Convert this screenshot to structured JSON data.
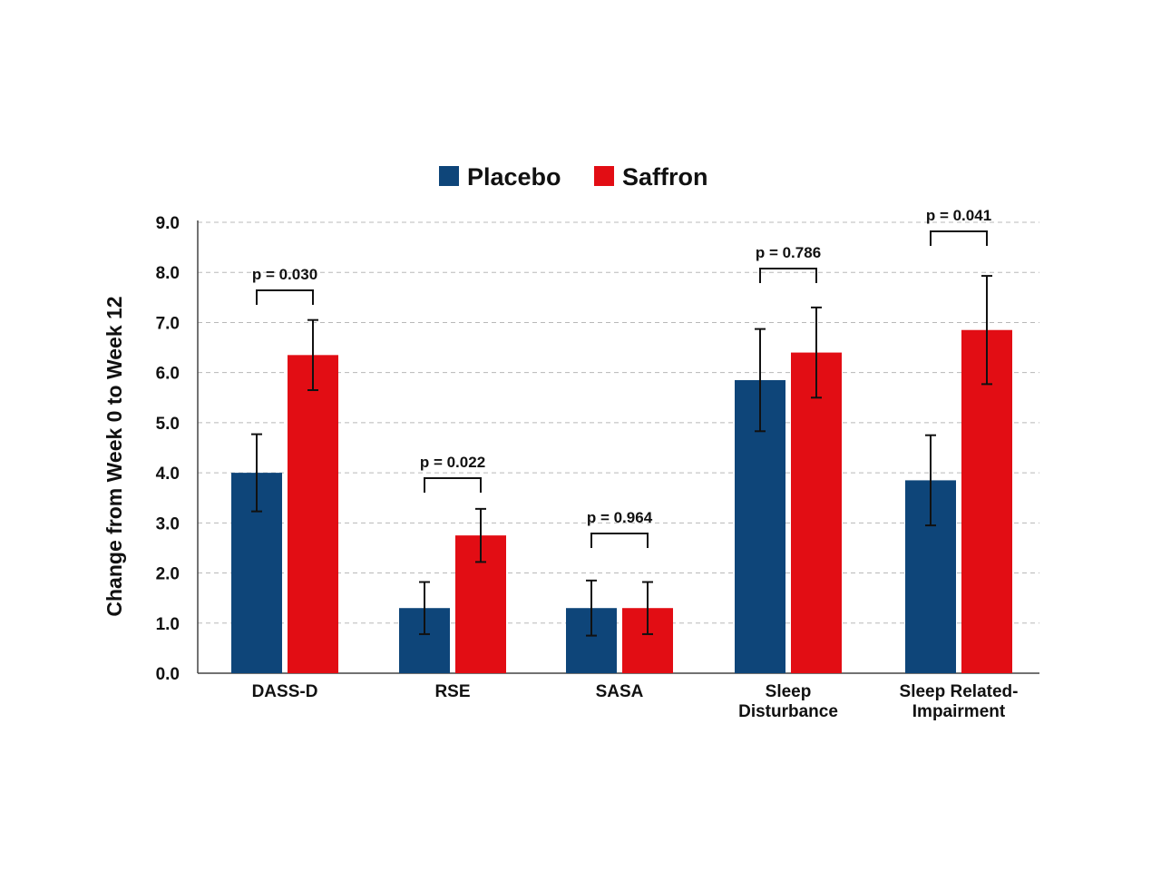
{
  "chart_data": {
    "type": "bar",
    "title": "",
    "xlabel": "",
    "ylabel": "Change from Week 0 to Week 12",
    "ylim": [
      0,
      9
    ],
    "yticks": [
      "0.0",
      "1.0",
      "2.0",
      "3.0",
      "4.0",
      "5.0",
      "6.0",
      "7.0",
      "8.0",
      "9.0"
    ],
    "grid": true,
    "legend_position": "top-center",
    "categories": [
      [
        "DASS-D"
      ],
      [
        "RSE"
      ],
      [
        "SASA"
      ],
      [
        "Sleep",
        "Disturbance"
      ],
      [
        "Sleep Related-",
        "Impairment"
      ]
    ],
    "series": [
      {
        "name": "Placebo",
        "color": "#0e4579",
        "values": [
          4.0,
          1.3,
          1.3,
          5.85,
          3.85
        ],
        "error": [
          0.77,
          0.52,
          0.55,
          1.02,
          0.9
        ]
      },
      {
        "name": "Saffron",
        "color": "#e20d14",
        "values": [
          6.35,
          2.75,
          1.3,
          6.4,
          6.85
        ],
        "error": [
          0.7,
          0.53,
          0.52,
          0.9,
          1.08
        ]
      }
    ],
    "annotations": [
      "p = 0.030",
      "p = 0.022",
      "p = 0.964",
      "p = 0.786",
      "p = 0.041"
    ]
  }
}
